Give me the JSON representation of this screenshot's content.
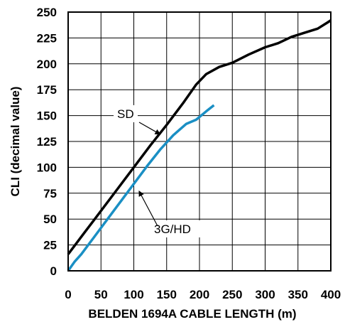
{
  "chart_data": {
    "type": "line",
    "xlabel": "BELDEN 1694A CABLE LENGTH (m)",
    "ylabel": "CLI (decimal value)",
    "xlim": [
      0,
      400
    ],
    "ylim": [
      0,
      250
    ],
    "xticks": [
      0,
      50,
      100,
      150,
      200,
      250,
      300,
      350,
      400
    ],
    "yticks": [
      0,
      25,
      50,
      75,
      100,
      125,
      150,
      175,
      200,
      225,
      250
    ],
    "grid": true,
    "series": [
      {
        "name": "SD",
        "color": "#000000",
        "points": [
          [
            0,
            16
          ],
          [
            25,
            37
          ],
          [
            50,
            58
          ],
          [
            75,
            79
          ],
          [
            100,
            100
          ],
          [
            125,
            121
          ],
          [
            150,
            141
          ],
          [
            175,
            162
          ],
          [
            195,
            180
          ],
          [
            210,
            190
          ],
          [
            230,
            197
          ],
          [
            250,
            201
          ],
          [
            275,
            209
          ],
          [
            300,
            216
          ],
          [
            320,
            220
          ],
          [
            340,
            226
          ],
          [
            360,
            230
          ],
          [
            380,
            234
          ],
          [
            395,
            240
          ],
          [
            400,
            242
          ]
        ]
      },
      {
        "name": "3G/HD",
        "color": "#1a8fc4",
        "points": [
          [
            0,
            0
          ],
          [
            10,
            9
          ],
          [
            20,
            16
          ],
          [
            40,
            33
          ],
          [
            60,
            50
          ],
          [
            80,
            67
          ],
          [
            100,
            84
          ],
          [
            120,
            101
          ],
          [
            140,
            117
          ],
          [
            160,
            131
          ],
          [
            180,
            142
          ],
          [
            195,
            146
          ],
          [
            210,
            154
          ],
          [
            222,
            160
          ]
        ]
      }
    ],
    "annotations": [
      {
        "text": "SD",
        "series": "SD",
        "points_to": [
          140,
          132
        ]
      },
      {
        "text": "3G/HD",
        "series": "3G/HD",
        "points_to": [
          108,
          77
        ]
      }
    ]
  }
}
